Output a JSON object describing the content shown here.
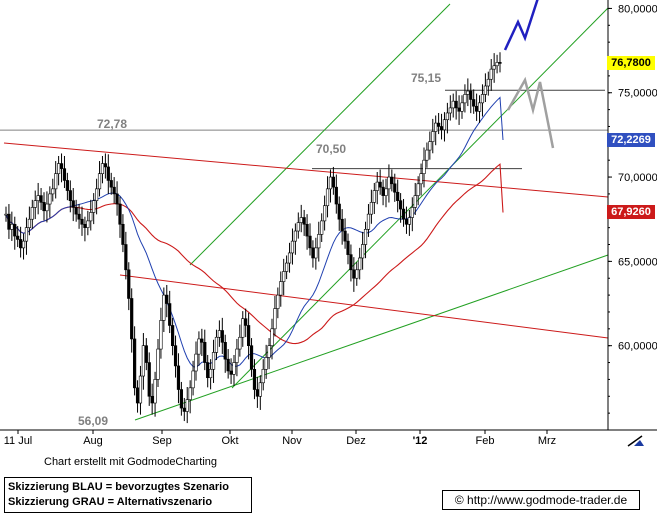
{
  "chart_data": {
    "type": "candlestick",
    "title": "",
    "x_ticks": [
      "11 Jul",
      "Aug",
      "Sep",
      "Okt",
      "Nov",
      "Dez",
      "'12",
      "Feb",
      "Mrz"
    ],
    "y_ticks": [
      "80,0000",
      "75,0000",
      "70,0000",
      "65,0000",
      "60,0000"
    ],
    "ylim": [
      55,
      80.5
    ],
    "price_tags": [
      {
        "label": "76,7800",
        "value": 76.78,
        "color": "#000000",
        "bg": "#ffff00"
      },
      {
        "label": "72,2269",
        "value": 72.2269,
        "color": "#ffffff",
        "bg": "#3050c0"
      },
      {
        "label": "67,9260",
        "value": 67.926,
        "color": "#ffffff",
        "bg": "#cc1a1a"
      }
    ],
    "annotations": [
      {
        "label": "72,78",
        "value": 72.78
      },
      {
        "label": "70,50",
        "value": 70.5
      },
      {
        "label": "75,15",
        "value": 75.15
      },
      {
        "label": "56,09",
        "value": 56.09
      }
    ],
    "price_series": {
      "name": "",
      "values": [
        67.8,
        66.9,
        67.2,
        66.5,
        66.3,
        65.8,
        66.2,
        67.0,
        67.5,
        68.2,
        68.6,
        68.9,
        68.5,
        68.0,
        68.4,
        69.0,
        69.3,
        70.2,
        70.8,
        70.5,
        69.8,
        69.2,
        68.6,
        68.2,
        67.8,
        67.5,
        67.2,
        67.0,
        67.4,
        67.9,
        68.6,
        69.3,
        70.2,
        70.8,
        70.6,
        69.8,
        69.4,
        69.0,
        68.4,
        67.2,
        66.0,
        64.5,
        62.8,
        60.4,
        57.5,
        56.6,
        58.2,
        60.0,
        59.0,
        57.0,
        56.6,
        58.0,
        59.8,
        61.5,
        63.0,
        62.5,
        61.2,
        60.0,
        58.8,
        57.4,
        56.3,
        56.1,
        56.8,
        57.5,
        58.5,
        59.5,
        60.4,
        60.2,
        59.0,
        58.1,
        58.6,
        59.6,
        60.5,
        60.9,
        60.2,
        59.2,
        58.5,
        58.3,
        59.0,
        59.8,
        60.5,
        61.6,
        61.2,
        60.0,
        58.6,
        57.4,
        57.0,
        57.8,
        58.6,
        59.3,
        60.0,
        61.0,
        62.2,
        63.0,
        63.8,
        64.4,
        64.9,
        65.5,
        66.2,
        66.8,
        67.3,
        67.6,
        67.2,
        66.5,
        65.8,
        65.2,
        65.8,
        66.6,
        67.4,
        68.3,
        69.3,
        70.0,
        69.4,
        68.4,
        67.5,
        66.8,
        66.2,
        65.4,
        64.5,
        64.0,
        64.5,
        65.2,
        66.0,
        66.9,
        67.8,
        68.5,
        69.2,
        69.7,
        69.4,
        68.9,
        69.3,
        70.0,
        69.6,
        69.1,
        68.6,
        68.1,
        67.5,
        67.2,
        67.6,
        68.2,
        68.9,
        69.6,
        70.2,
        71.0,
        71.6,
        72.1,
        72.7,
        73.2,
        73.0,
        72.8,
        73.4,
        73.8,
        74.1,
        74.5,
        74.1,
        73.9,
        74.4,
        74.9,
        75.1,
        74.6,
        74.2,
        73.9,
        74.4,
        74.9,
        75.4,
        75.8,
        76.4,
        76.6,
        76.8,
        76.78
      ],
      "x_domain": [
        0,
        162
      ]
    },
    "scenarios": [
      {
        "label": "Skizzierung BLAU = bevorzugtes Szenario",
        "color": "#2020c0"
      },
      {
        "label": "Skizzierung GRAU = Alternativszenario",
        "color": "#a0a0a0"
      }
    ]
  },
  "footer": {
    "credit": "Chart erstellt mit GodmodeCharting",
    "url": "http://www.godmode-trader.de",
    "url_icon": "copyright-icon"
  },
  "corner_icon": "trend-line-tool-icon"
}
